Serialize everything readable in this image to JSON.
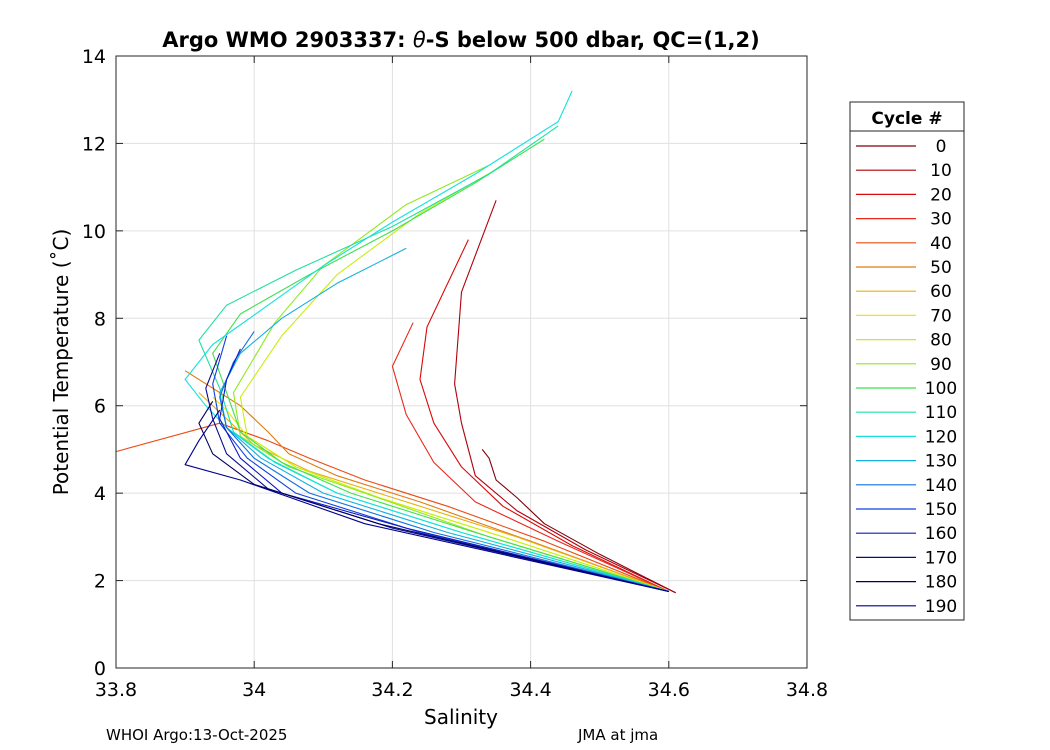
{
  "chart_data": {
    "type": "line",
    "title_parts": {
      "prefix": "Argo WMO 2903337: ",
      "theta": "θ",
      "suffix": "-S below 500 dbar,  QC=(1,2)"
    },
    "xlabel": "Salinity",
    "ylabel": "Potential Temperature (˚C)",
    "xlim": [
      33.8,
      34.8
    ],
    "ylim": [
      0,
      14
    ],
    "xticks": [
      33.8,
      34.0,
      34.2,
      34.4,
      34.6,
      34.8
    ],
    "xtick_labels": [
      "33.8",
      "34",
      "34.2",
      "34.4",
      "34.6",
      "34.8"
    ],
    "yticks": [
      0,
      2,
      4,
      6,
      8,
      10,
      12,
      14
    ],
    "ytick_labels": [
      "0",
      "2",
      "4",
      "6",
      "8",
      "10",
      "12",
      "14"
    ],
    "grid": true,
    "legend_position": "outside-right",
    "legend_title": "Cycle #",
    "legend_entries": [
      {
        "label": "0",
        "color": "#80000a"
      },
      {
        "label": "10",
        "color": "#b0000a"
      },
      {
        "label": "20",
        "color": "#d80a0a"
      },
      {
        "label": "30",
        "color": "#e8281a"
      },
      {
        "label": "40",
        "color": "#ea4a14"
      },
      {
        "label": "50",
        "color": "#e07a10"
      },
      {
        "label": "60",
        "color": "#e8b00c"
      },
      {
        "label": "70",
        "color": "#f4e20a"
      },
      {
        "label": "80",
        "color": "#c8ee10"
      },
      {
        "label": "90",
        "color": "#8eea1c"
      },
      {
        "label": "100",
        "color": "#3ee050"
      },
      {
        "label": "110",
        "color": "#22e0a0"
      },
      {
        "label": "120",
        "color": "#16e0e0"
      },
      {
        "label": "130",
        "color": "#10b0e0"
      },
      {
        "label": "140",
        "color": "#1070e0"
      },
      {
        "label": "150",
        "color": "#1040e0"
      },
      {
        "label": "160",
        "color": "#1018c0"
      },
      {
        "label": "170",
        "color": "#0a0a90"
      },
      {
        "label": "180",
        "color": "#000060"
      },
      {
        "label": "190",
        "color": "#000090"
      }
    ],
    "series": [
      {
        "color": "#80000a",
        "x": [
          34.61,
          34.5,
          34.42,
          34.38,
          34.35,
          34.34,
          34.33
        ],
        "y": [
          1.72,
          2.6,
          3.3,
          3.9,
          4.3,
          4.8,
          5.0
        ]
      },
      {
        "color": "#b0000a",
        "x": [
          34.61,
          34.48,
          34.38,
          34.32,
          34.3,
          34.29,
          34.3,
          34.35
        ],
        "y": [
          1.72,
          2.7,
          3.6,
          4.4,
          5.6,
          6.5,
          8.6,
          10.7
        ]
      },
      {
        "color": "#d80a0a",
        "x": [
          34.6,
          34.46,
          34.36,
          34.3,
          34.26,
          34.24,
          34.25,
          34.31
        ],
        "y": [
          1.75,
          2.8,
          3.7,
          4.6,
          5.6,
          6.6,
          7.8,
          9.8
        ]
      },
      {
        "color": "#e8281a",
        "x": [
          34.6,
          34.44,
          34.32,
          34.26,
          34.22,
          34.2,
          34.23
        ],
        "y": [
          1.75,
          2.9,
          3.8,
          4.7,
          5.8,
          6.9,
          7.9
        ]
      },
      {
        "color": "#ea4a14",
        "x": [
          34.6,
          34.42,
          34.28,
          34.16,
          34.08,
          34.02,
          33.95,
          33.8
        ],
        "y": [
          1.75,
          2.9,
          3.7,
          4.3,
          4.8,
          5.2,
          5.6,
          4.95
        ]
      },
      {
        "color": "#e07a10",
        "x": [
          34.6,
          34.4,
          34.24,
          34.12,
          34.05,
          34.02,
          33.98,
          33.9
        ],
        "y": [
          1.75,
          2.9,
          3.8,
          4.4,
          4.9,
          5.4,
          6.0,
          6.8
        ]
      },
      {
        "color": "#e8b00c",
        "x": [
          34.6,
          34.38,
          34.2,
          34.08,
          34.0,
          33.96,
          33.92
        ],
        "y": [
          1.75,
          3.0,
          3.9,
          4.5,
          5.1,
          5.7,
          6.3
        ]
      },
      {
        "color": "#f4e20a",
        "x": [
          34.6,
          34.36,
          34.18,
          34.06,
          33.99,
          33.96,
          33.94
        ],
        "y": [
          1.75,
          3.0,
          3.9,
          4.6,
          5.3,
          5.9,
          6.2
        ]
      },
      {
        "color": "#c8ee10",
        "x": [
          34.6,
          34.36,
          34.18,
          34.06,
          33.99,
          33.98,
          34.04,
          34.12,
          34.24,
          34.36
        ],
        "y": [
          1.75,
          3.0,
          3.9,
          4.6,
          5.3,
          6.2,
          7.6,
          9.0,
          10.4,
          11.5
        ]
      },
      {
        "color": "#8eea1c",
        "x": [
          34.6,
          34.34,
          34.16,
          34.05,
          33.98,
          33.97,
          34.03,
          34.1,
          34.22,
          34.34
        ],
        "y": [
          1.75,
          3.0,
          4.0,
          4.6,
          5.3,
          6.3,
          7.9,
          9.2,
          10.6,
          11.5
        ]
      },
      {
        "color": "#3ee050",
        "x": [
          34.6,
          34.32,
          34.14,
          34.04,
          33.98,
          33.96,
          33.94,
          33.98,
          34.08,
          34.2,
          34.32,
          34.42
        ],
        "y": [
          1.75,
          3.1,
          4.0,
          4.7,
          5.4,
          6.3,
          7.2,
          8.1,
          9.0,
          10.0,
          11.1,
          12.1
        ]
      },
      {
        "color": "#22e0a0",
        "x": [
          34.6,
          34.3,
          34.12,
          34.03,
          33.97,
          33.95,
          33.92,
          33.96,
          34.06,
          34.2,
          34.34,
          34.44
        ],
        "y": [
          1.75,
          3.1,
          4.0,
          4.7,
          5.4,
          6.4,
          7.5,
          8.3,
          9.1,
          10.1,
          11.3,
          12.4
        ]
      },
      {
        "color": "#16e0e0",
        "x": [
          34.6,
          34.3,
          34.12,
          34.02,
          33.96,
          33.93,
          33.9,
          33.94,
          34.02,
          34.1,
          34.2,
          34.32,
          34.44,
          34.46
        ],
        "y": [
          1.75,
          3.1,
          4.0,
          4.8,
          5.5,
          6.0,
          6.6,
          7.4,
          8.3,
          9.2,
          10.2,
          11.3,
          12.5,
          13.2
        ]
      },
      {
        "color": "#10b0e0",
        "x": [
          34.6,
          34.28,
          34.1,
          34.01,
          33.96,
          33.95,
          33.98,
          34.04,
          34.12,
          34.22
        ],
        "y": [
          1.75,
          3.1,
          4.0,
          4.8,
          5.5,
          6.3,
          7.2,
          8.0,
          8.8,
          9.6
        ]
      },
      {
        "color": "#1070e0",
        "x": [
          34.6,
          34.26,
          34.08,
          34.0,
          33.96,
          33.95,
          33.97,
          34.0
        ],
        "y": [
          1.75,
          3.1,
          4.0,
          4.8,
          5.5,
          6.2,
          7.0,
          7.7
        ]
      },
      {
        "color": "#1040e0",
        "x": [
          34.6,
          34.24,
          34.06,
          33.99,
          33.95,
          33.94,
          33.96
        ],
        "y": [
          1.75,
          3.1,
          4.0,
          4.8,
          5.6,
          6.5,
          7.6
        ]
      },
      {
        "color": "#1018c0",
        "x": [
          34.6,
          34.22,
          34.04,
          33.98,
          33.95,
          33.96,
          33.98
        ],
        "y": [
          1.75,
          3.2,
          4.0,
          4.8,
          5.7,
          6.6,
          7.3
        ]
      },
      {
        "color": "#0a0a90",
        "x": [
          34.6,
          34.2,
          34.02,
          33.96,
          33.94,
          33.93,
          33.95
        ],
        "y": [
          1.75,
          3.2,
          4.1,
          4.9,
          5.7,
          6.4,
          7.2
        ]
      },
      {
        "color": "#000060",
        "x": [
          34.6,
          34.18,
          34.0,
          33.94,
          33.92,
          33.94
        ],
        "y": [
          1.75,
          3.3,
          4.2,
          4.9,
          5.6,
          6.1
        ]
      },
      {
        "color": "#000090",
        "x": [
          34.6,
          34.16,
          33.98,
          33.9,
          33.92,
          33.95
        ],
        "y": [
          1.75,
          3.3,
          4.3,
          4.65,
          5.2,
          5.9
        ]
      }
    ]
  },
  "footer": {
    "left": "WHOI Argo:13-Oct-2025",
    "right": "JMA at jma"
  }
}
